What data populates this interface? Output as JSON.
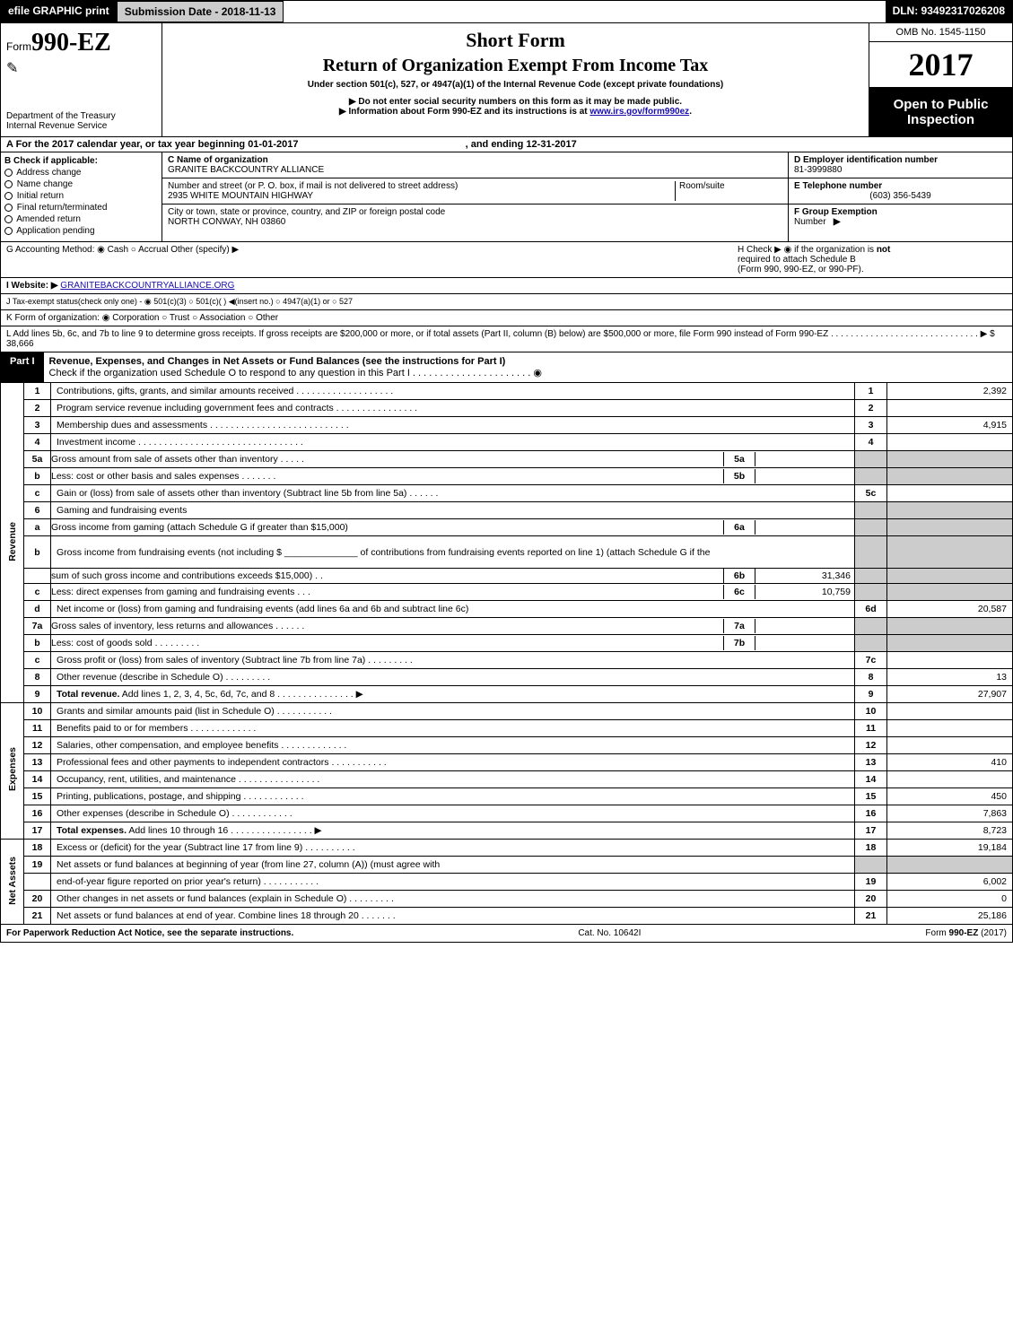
{
  "topbar": {
    "print": "efile GRAPHIC print",
    "sub": "Submission Date - 2018-11-13",
    "dln": "DLN: 93492317026208"
  },
  "hdr": {
    "form_pre": "Form",
    "form_no": "990-EZ",
    "dept1": "Department of the Treasury",
    "dept2": "Internal Revenue Service",
    "h1": "Short Form",
    "h2": "Return of Organization Exempt From Income Tax",
    "sub": "Under section 501(c), 527, or 4947(a)(1) of the Internal Revenue Code (except private foundations)",
    "note1": "▶ Do not enter social security numbers on this form as it may be made public.",
    "note2_a": "▶ Information about Form 990-EZ and its instructions is at ",
    "note2_link": "www.irs.gov/form990ez",
    "omb": "OMB No. 1545-1150",
    "year": "2017",
    "open1": "Open to Public",
    "open2": "Inspection"
  },
  "A": {
    "text_a": "A  For the 2017 calendar year, or tax year beginning 01-01-2017",
    "text_b": ", and ending 12-31-2017"
  },
  "B": {
    "title": "B  Check if applicable:",
    "items": [
      "Address change",
      "Name change",
      "Initial return",
      "Final return/terminated",
      "Amended return",
      "Application pending"
    ]
  },
  "C": {
    "c_label": "C Name of organization",
    "c_val": "GRANITE BACKCOUNTRY ALLIANCE",
    "addr_label": "Number and street (or P. O. box, if mail is not delivered to street address)",
    "addr_val": "2935 WHITE MOUNTAIN HIGHWAY",
    "room": "Room/suite",
    "city_label": "City or town, state or province, country, and ZIP or foreign postal code",
    "city_val": "NORTH CONWAY, NH  03860"
  },
  "D": {
    "label": "D Employer identification number",
    "val": "81-3999880"
  },
  "E": {
    "label": "E Telephone number",
    "val": "(603) 356-5439"
  },
  "F": {
    "label": "F Group Exemption",
    "label2": "Number",
    "arrow": "▶"
  },
  "G": {
    "text": "G Accounting Method:   ◉ Cash   ○ Accrual   Other (specify) ▶"
  },
  "H": {
    "text": "H   Check ▶  ◉  if the organization is ",
    "not": "not",
    "sub1": "required to attach Schedule B",
    "sub2": "(Form 990, 990-EZ, or 990-PF)."
  },
  "I": {
    "label": "I Website: ▶",
    "link": "GRANITEBACKCOUNTRYALLIANCE.ORG"
  },
  "J": {
    "text": "J Tax-exempt status(check only one) -  ◉ 501(c)(3)  ○ 501(c)(  ) ◀(insert no.)  ○ 4947(a)(1) or  ○ 527"
  },
  "K": {
    "text": "K Form of organization:  ◉ Corporation   ○ Trust   ○ Association   ○ Other"
  },
  "L": {
    "text": "L Add lines 5b, 6c, and 7b to line 9 to determine gross receipts. If gross receipts are $200,000 or more, or if total assets (Part II, column (B) below) are $500,000 or more, file Form 990 instead of Form 990-EZ  .  .  .  .  .  .  .  .  .  .  .  .  .  .  .  .  .  .  .  .  .  .  .  .  .  .  .  .  .  .  ▶ $ 38,666"
  },
  "partI": {
    "tag": "Part I",
    "desc": "Revenue, Expenses, and Changes in Net Assets or Fund Balances (see the instructions for Part I)",
    "check": "Check if the organization used Schedule O to respond to any question in this Part I .  .  .  .  .  .  .  .  .  .  .  .  .  .  .  .  .  .  .  .  .  .   ◉"
  },
  "rows": [
    {
      "sec": "rev",
      "n": "1",
      "t": "Contributions, gifts, grants, and similar amounts received  .  .  .  .  .  .  .  .  .  .  .  .  .  .  .  .  .  .  .",
      "ln": "1",
      "amt": "2,392"
    },
    {
      "sec": "rev",
      "n": "2",
      "t": "Program service revenue including government fees and contracts  .  .  .  .  .  .  .  .  .  .  .  .  .  .  .  .",
      "ln": "2",
      "amt": ""
    },
    {
      "sec": "rev",
      "n": "3",
      "t": "Membership dues and assessments  .  .  .  .  .  .  .  .  .  .  .  .  .  .  .  .  .  .  .  .  .  .  .  .  .  .  .",
      "ln": "3",
      "amt": "4,915"
    },
    {
      "sec": "rev",
      "n": "4",
      "t": "Investment income  .  .  .  .  .  .  .  .  .  .  .  .  .  .  .  .  .  .  .  .  .  .  .  .  .  .  .  .  .  .  .  .",
      "ln": "4",
      "amt": ""
    },
    {
      "sec": "rev",
      "n": "5a",
      "t": "Gross amount from sale of assets other than inventory  .  .  .  .  .",
      "sln": "5a",
      "samt": "",
      "ln": "",
      "amt": "",
      "greyR": true
    },
    {
      "sec": "rev",
      "n": "b",
      "t": "Less: cost or other basis and sales expenses  .  .  .  .  .  .  .",
      "sln": "5b",
      "samt": "",
      "ln": "",
      "amt": "",
      "greyR": true
    },
    {
      "sec": "rev",
      "n": "c",
      "t": "Gain or (loss) from sale of assets other than inventory (Subtract line 5b from line 5a)               .    .    .    .    .    .",
      "ln": "5c",
      "amt": ""
    },
    {
      "sec": "rev",
      "n": "6",
      "t": "Gaming and fundraising events",
      "ln": "",
      "amt": "",
      "greyR": true
    },
    {
      "sec": "rev",
      "n": "a",
      "t": "Gross income from gaming (attach Schedule G if greater than $15,000)",
      "sln": "6a",
      "samt": "",
      "ln": "",
      "amt": "",
      "greyR": true
    },
    {
      "sec": "rev",
      "n": "b",
      "t": "Gross income from fundraising events (not including $ ______________ of contributions from fundraising events reported on line 1) (attach Schedule G if the",
      "ln": "",
      "amt": "",
      "greyR": true,
      "tall": true
    },
    {
      "sec": "rev",
      "n": "",
      "t": "sum of such gross income and contributions exceeds $15,000)      .    .",
      "sln": "6b",
      "samt": "31,346",
      "ln": "",
      "amt": "",
      "greyR": true
    },
    {
      "sec": "rev",
      "n": "c",
      "t": "Less: direct expenses from gaming and fundraising events        .    .    .",
      "sln": "6c",
      "samt": "10,759",
      "ln": "",
      "amt": "",
      "greyR": true
    },
    {
      "sec": "rev",
      "n": "d",
      "t": "Net income or (loss) from gaming and fundraising events (add lines 6a and 6b and subtract line 6c)",
      "ln": "6d",
      "amt": "20,587"
    },
    {
      "sec": "rev",
      "n": "7a",
      "t": "Gross sales of inventory, less returns and allowances           .    .    .    .    .    .",
      "sln": "7a",
      "samt": "",
      "ln": "",
      "amt": "",
      "greyR": true
    },
    {
      "sec": "rev",
      "n": "b",
      "t": "Less: cost of goods sold                          .    .    .    .    .    .    .    .    .",
      "sln": "7b",
      "samt": "",
      "ln": "",
      "amt": "",
      "greyR": true
    },
    {
      "sec": "rev",
      "n": "c",
      "t": "Gross profit or (loss) from sales of inventory (Subtract line 7b from line 7a)             .    .    .    .    .    .    .    .    .",
      "ln": "7c",
      "amt": ""
    },
    {
      "sec": "rev",
      "n": "8",
      "t": "Other revenue (describe in Schedule O)                     .    .    .    .    .    .    .    .    .",
      "ln": "8",
      "amt": "13"
    },
    {
      "sec": "rev",
      "n": "9",
      "t": "<b>Total revenue.</b> Add lines 1, 2, 3, 4, 5c, 6d, 7c, and 8        .    .    .    .    .    .    .    .    .    .    .    .    .    .    .   ▶",
      "ln": "9",
      "amt": "27,907"
    },
    {
      "sec": "exp",
      "n": "10",
      "t": "Grants and similar amounts paid (list in Schedule O)              .    .    .    .    .    .    .    .    .    .    .",
      "ln": "10",
      "amt": ""
    },
    {
      "sec": "exp",
      "n": "11",
      "t": "Benefits paid to or for members                     .    .    .    .    .    .    .    .    .    .    .    .    .",
      "ln": "11",
      "amt": ""
    },
    {
      "sec": "exp",
      "n": "12",
      "t": "Salaries, other compensation, and employee benefits         .    .    .    .    .    .    .    .    .    .    .    .    .",
      "ln": "12",
      "amt": ""
    },
    {
      "sec": "exp",
      "n": "13",
      "t": "Professional fees and other payments to independent contractors       .    .    .    .    .    .    .    .    .    .    .",
      "ln": "13",
      "amt": "410"
    },
    {
      "sec": "exp",
      "n": "14",
      "t": "Occupancy, rent, utilities, and maintenance        .    .    .    .    .    .    .    .    .    .    .    .    .    .    .    .",
      "ln": "14",
      "amt": ""
    },
    {
      "sec": "exp",
      "n": "15",
      "t": "Printing, publications, postage, and shipping                 .    .    .    .    .    .    .    .    .    .    .    .",
      "ln": "15",
      "amt": "450"
    },
    {
      "sec": "exp",
      "n": "16",
      "t": "Other expenses (describe in Schedule O)                  .    .    .    .    .    .    .    .    .    .    .    .",
      "ln": "16",
      "amt": "7,863"
    },
    {
      "sec": "exp",
      "n": "17",
      "t": "<b>Total expenses.</b> Add lines 10 through 16           .    .    .    .    .    .    .    .    .    .    .    .    .    .    .    .   ▶",
      "ln": "17",
      "amt": "8,723"
    },
    {
      "sec": "net",
      "n": "18",
      "t": "Excess or (deficit) for the year (Subtract line 17 from line 9)            .    .    .    .    .    .    .    .    .    .",
      "ln": "18",
      "amt": "19,184"
    },
    {
      "sec": "net",
      "n": "19",
      "t": "Net assets or fund balances at beginning of year (from line 27, column (A)) (must agree with",
      "ln": "",
      "amt": "",
      "greyR": true
    },
    {
      "sec": "net",
      "n": "",
      "t": "end-of-year figure reported on prior year's return)               .    .    .    .    .    .    .    .    .    .    .",
      "ln": "19",
      "amt": "6,002"
    },
    {
      "sec": "net",
      "n": "20",
      "t": "Other changes in net assets or fund balances (explain in Schedule O)       .    .    .    .    .    .    .    .    .",
      "ln": "20",
      "amt": "0"
    },
    {
      "sec": "net",
      "n": "21",
      "t": "Net assets or fund balances at end of year. Combine lines 18 through 20          .    .    .    .    .    .    .",
      "ln": "21",
      "amt": "25,186"
    }
  ],
  "sections": {
    "rev": "Revenue",
    "exp": "Expenses",
    "net": "Net Assets"
  },
  "foot": {
    "l": "For Paperwork Reduction Act Notice, see the separate instructions.",
    "m": "Cat. No. 10642I",
    "r": "Form 990-EZ (2017)"
  }
}
